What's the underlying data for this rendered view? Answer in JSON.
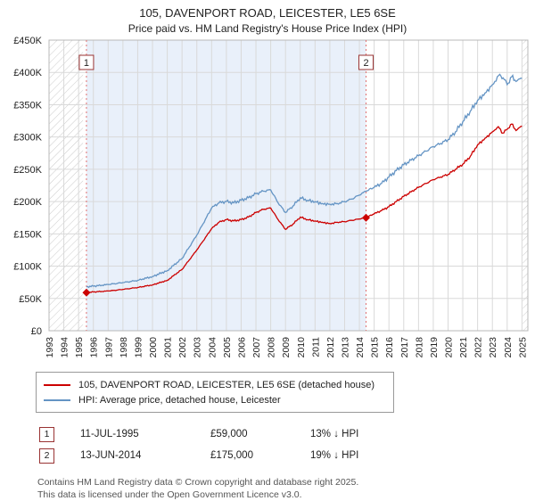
{
  "sales_table": [
    {
      "marker": "1",
      "date": "11-JUL-1995",
      "price": "£59,000",
      "hpi": "13% ↓ HPI"
    },
    {
      "marker": "2",
      "date": "13-JUN-2014",
      "price": "£175,000",
      "hpi": "19% ↓ HPI"
    }
  ],
  "footer": {
    "line1": "Contains HM Land Registry data © Crown copyright and database right 2025.",
    "line2": "This data is licensed under the Open Government Licence v3.0."
  },
  "chart_data": {
    "type": "line",
    "title": "105, DAVENPORT ROAD, LEICESTER, LE5 6SE",
    "subtitle": "Price paid vs. HM Land Registry's House Price Index (HPI)",
    "xlabel": "",
    "ylabel": "",
    "xlim": [
      1993,
      2025.4
    ],
    "ylim": [
      0,
      450000
    ],
    "grid": true,
    "legend_position": "bottom",
    "ytick_values": [
      0,
      50000,
      100000,
      150000,
      200000,
      250000,
      300000,
      350000,
      400000,
      450000
    ],
    "ytick_labels": [
      "£0",
      "£50K",
      "£100K",
      "£150K",
      "£200K",
      "£250K",
      "£300K",
      "£350K",
      "£400K",
      "£450K"
    ],
    "xtick_labels": [
      "1993",
      "1994",
      "1995",
      "1996",
      "1997",
      "1998",
      "1999",
      "2000",
      "2001",
      "2002",
      "2003",
      "2004",
      "2005",
      "2006",
      "2007",
      "2008",
      "2009",
      "2010",
      "2011",
      "2012",
      "2013",
      "2014",
      "2015",
      "2016",
      "2017",
      "2018",
      "2019",
      "2020",
      "2021",
      "2022",
      "2023",
      "2024",
      "2025"
    ],
    "colors": {
      "property_line": "#cc0000",
      "hpi_line": "#6494c4",
      "shaded_band": "#e9f0fa",
      "sale_line": "#e07070",
      "marker_border": "#993333",
      "grid": "#d9d9d9",
      "hatch": "#cccccc"
    },
    "shaded_region": [
      1995.53,
      2014.45
    ],
    "hatched_regions": [
      [
        1993,
        1995.3
      ],
      [
        2025.05,
        2025.4
      ]
    ],
    "sales": [
      {
        "label": "1",
        "x": 1995.53,
        "price": 59000
      },
      {
        "label": "2",
        "x": 2014.45,
        "price": 175000
      }
    ],
    "series": [
      {
        "name": "105, DAVENPORT ROAD, LEICESTER, LE5 6SE (detached house)",
        "color": "#cc0000",
        "points": [
          [
            1995.53,
            59000
          ],
          [
            1996,
            60000
          ],
          [
            1997,
            61500
          ],
          [
            1998,
            64000
          ],
          [
            1999,
            67000
          ],
          [
            2000,
            71000
          ],
          [
            2001,
            78000
          ],
          [
            2002,
            95000
          ],
          [
            2003,
            125000
          ],
          [
            2004,
            158000
          ],
          [
            2004.5,
            168000
          ],
          [
            2005,
            172000
          ],
          [
            2005.5,
            170000
          ],
          [
            2006,
            172000
          ],
          [
            2006.5,
            176000
          ],
          [
            2007,
            183000
          ],
          [
            2007.5,
            188000
          ],
          [
            2008,
            190000
          ],
          [
            2008.5,
            172000
          ],
          [
            2009,
            157000
          ],
          [
            2009.5,
            165000
          ],
          [
            2010,
            176000
          ],
          [
            2010.5,
            172000
          ],
          [
            2011,
            170000
          ],
          [
            2011.5,
            168000
          ],
          [
            2012,
            166000
          ],
          [
            2012.5,
            168000
          ],
          [
            2013,
            169000
          ],
          [
            2013.5,
            171000
          ],
          [
            2014,
            173000
          ],
          [
            2014.45,
            175000
          ],
          [
            2015,
            181000
          ],
          [
            2015.5,
            186000
          ],
          [
            2016,
            192000
          ],
          [
            2016.5,
            200000
          ],
          [
            2017,
            208000
          ],
          [
            2017.5,
            215000
          ],
          [
            2018,
            222000
          ],
          [
            2018.5,
            228000
          ],
          [
            2019,
            234000
          ],
          [
            2019.5,
            238000
          ],
          [
            2020,
            242000
          ],
          [
            2020.5,
            250000
          ],
          [
            2021,
            258000
          ],
          [
            2021.5,
            270000
          ],
          [
            2022,
            288000
          ],
          [
            2022.5,
            298000
          ],
          [
            2023,
            308000
          ],
          [
            2023.4,
            316000
          ],
          [
            2023.7,
            306000
          ],
          [
            2024,
            312000
          ],
          [
            2024.3,
            320000
          ],
          [
            2024.6,
            310000
          ],
          [
            2025,
            317000
          ]
        ]
      },
      {
        "name": "HPI: Average price, detached house, Leicester",
        "color": "#6494c4",
        "points": [
          [
            1995.53,
            68000
          ],
          [
            1996,
            69000
          ],
          [
            1997,
            71500
          ],
          [
            1998,
            74500
          ],
          [
            1999,
            78000
          ],
          [
            2000,
            84000
          ],
          [
            2001,
            93000
          ],
          [
            2002,
            112000
          ],
          [
            2003,
            148000
          ],
          [
            2004,
            190000
          ],
          [
            2004.5,
            198000
          ],
          [
            2005,
            200000
          ],
          [
            2005.5,
            198000
          ],
          [
            2006,
            202000
          ],
          [
            2006.5,
            206000
          ],
          [
            2007,
            212000
          ],
          [
            2007.5,
            216000
          ],
          [
            2008,
            218000
          ],
          [
            2008.5,
            198000
          ],
          [
            2009,
            183000
          ],
          [
            2009.5,
            193000
          ],
          [
            2010,
            206000
          ],
          [
            2010.5,
            202000
          ],
          [
            2011,
            200000
          ],
          [
            2011.5,
            197000
          ],
          [
            2012,
            196000
          ],
          [
            2012.5,
            197000
          ],
          [
            2013,
            200000
          ],
          [
            2013.5,
            204000
          ],
          [
            2014,
            210000
          ],
          [
            2014.45,
            216000
          ],
          [
            2015,
            222000
          ],
          [
            2015.5,
            228000
          ],
          [
            2016,
            238000
          ],
          [
            2016.5,
            248000
          ],
          [
            2017,
            257000
          ],
          [
            2017.5,
            264000
          ],
          [
            2018,
            271000
          ],
          [
            2018.5,
            278000
          ],
          [
            2019,
            285000
          ],
          [
            2019.5,
            290000
          ],
          [
            2020,
            296000
          ],
          [
            2020.5,
            308000
          ],
          [
            2021,
            324000
          ],
          [
            2021.5,
            340000
          ],
          [
            2022,
            357000
          ],
          [
            2022.5,
            368000
          ],
          [
            2023,
            381000
          ],
          [
            2023.5,
            397000
          ],
          [
            2023.8,
            389000
          ],
          [
            2024,
            381000
          ],
          [
            2024.3,
            393000
          ],
          [
            2024.6,
            386000
          ],
          [
            2025,
            391000
          ]
        ]
      }
    ]
  }
}
